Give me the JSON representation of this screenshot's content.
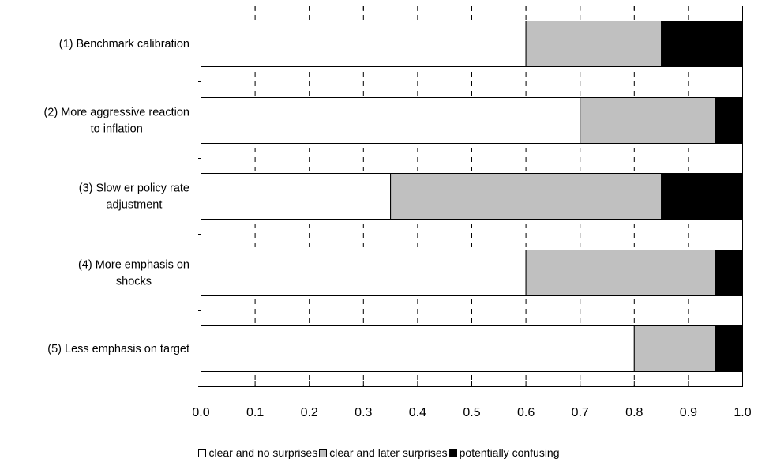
{
  "chart_data": {
    "type": "bar",
    "orientation": "horizontal",
    "stacked": true,
    "categories": [
      [
        "(1) Benchmark calibration"
      ],
      [
        "(2) More aggressive reaction",
        "to inflation"
      ],
      [
        "(3) Slow er policy rate",
        "adjustment"
      ],
      [
        "(4) More emphasis on",
        "shocks"
      ],
      [
        "(5) Less emphasis on  target"
      ]
    ],
    "series": [
      {
        "name": "clear and no surprises",
        "color": "#ffffff",
        "values": [
          0.6,
          0.7,
          0.35,
          0.6,
          0.8
        ]
      },
      {
        "name": "clear and later surprises",
        "color": "#c0c0c0",
        "values": [
          0.25,
          0.25,
          0.5,
          0.35,
          0.15
        ]
      },
      {
        "name": "potentially confusing",
        "color": "#000000",
        "values": [
          0.15,
          0.05,
          0.15,
          0.05,
          0.05
        ]
      }
    ],
    "xlim": [
      0.0,
      1.0
    ],
    "xticks": [
      "0.0",
      "0.1",
      "0.2",
      "0.3",
      "0.4",
      "0.5",
      "0.6",
      "0.7",
      "0.8",
      "0.9",
      "1.0"
    ],
    "grid": "dashed vertical",
    "legend_position": "bottom"
  }
}
